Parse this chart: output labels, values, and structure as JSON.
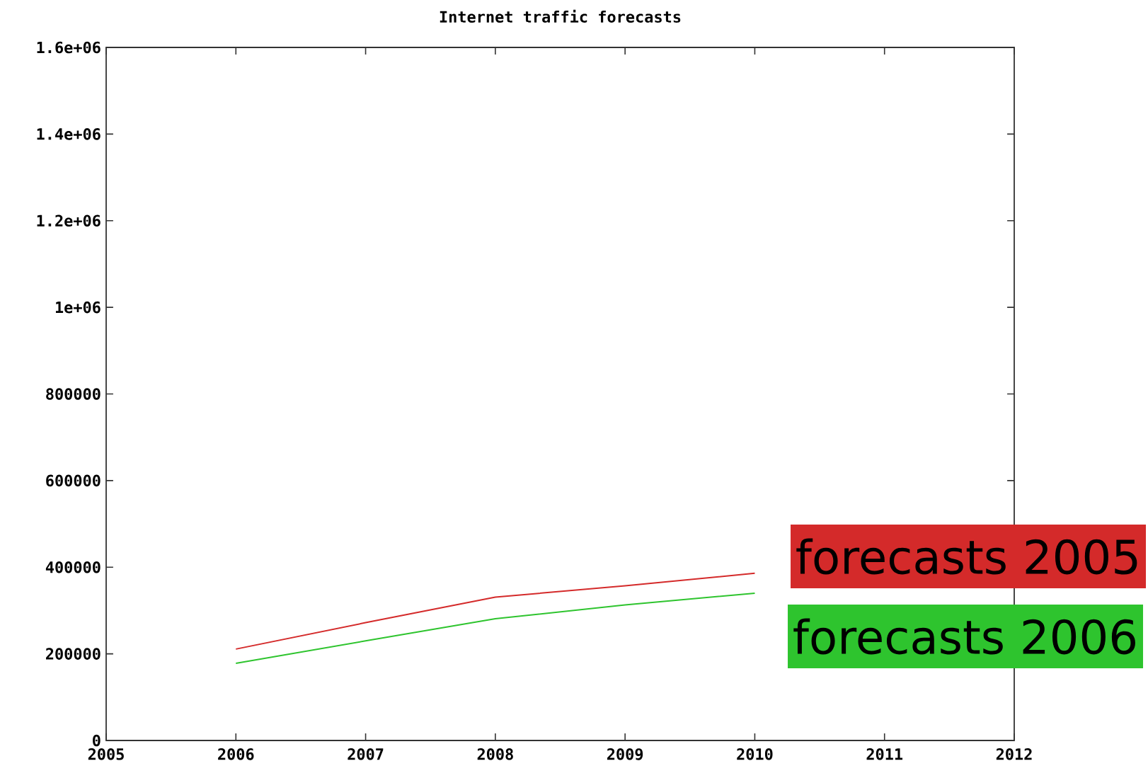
{
  "chart_data": {
    "type": "line",
    "title": "Internet traffic forecasts",
    "x": [
      2006,
      2007,
      2008,
      2009,
      2010
    ],
    "series": [
      {
        "name": "forecasts 2005",
        "color": "#d42a2a",
        "values": [
          211000,
          272000,
          331000,
          357000,
          386000
        ]
      },
      {
        "name": "forecasts 2006",
        "color": "#2ec42e",
        "values": [
          178000,
          230000,
          281000,
          313000,
          340000
        ]
      }
    ],
    "xlim": [
      2005,
      2012
    ],
    "xticks": [
      2005,
      2006,
      2007,
      2008,
      2009,
      2010,
      2011,
      2012
    ],
    "ylim": [
      0,
      1600000
    ],
    "yticks": [
      0,
      200000,
      400000,
      600000,
      800000,
      {
        "value": 1000000,
        "label": "1e+06"
      },
      {
        "value": 1200000,
        "label": "1.2e+06"
      },
      {
        "value": 1400000,
        "label": "1.4e+06"
      },
      {
        "value": 1600000,
        "label": "1.6e+06"
      }
    ],
    "grid": false,
    "legend": "right",
    "marker": "none",
    "line_style": "solid"
  }
}
